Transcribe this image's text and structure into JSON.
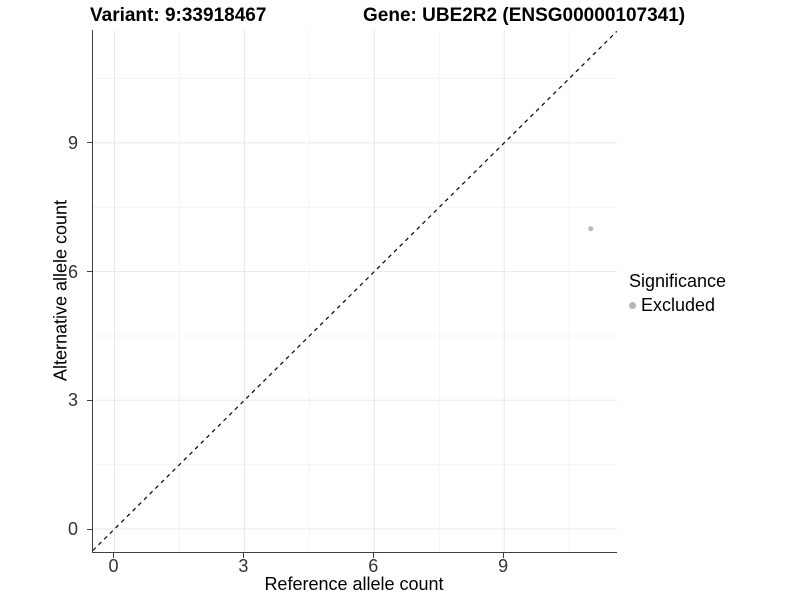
{
  "titles": {
    "variant": "Variant: 9:33918467",
    "gene": "Gene: UBE2R2 (ENSG00000107341)"
  },
  "chart_data": {
    "type": "scatter",
    "title_left": "Variant: 9:33918467",
    "title_right": "Gene: UBE2R2 (ENSG00000107341)",
    "xlabel": "Reference allele count",
    "ylabel": "Alternative allele count",
    "xlim": [
      -0.5,
      11.6
    ],
    "ylim": [
      -0.54,
      11.63
    ],
    "xticks": [
      0,
      3,
      6,
      9
    ],
    "yticks": [
      0,
      3,
      6,
      9
    ],
    "minor_ticks_x": [
      1.5,
      4.5,
      7.5,
      10.5
    ],
    "minor_ticks_y": [
      1.5,
      4.5,
      7.5,
      10.5
    ],
    "grid": "major and minor gridlines, white background",
    "series": [
      {
        "name": "Excluded",
        "color": "#bdbdbd",
        "points": [
          {
            "x": 11,
            "y": 7
          }
        ]
      }
    ],
    "reference_line": {
      "equation": "y = x",
      "style": "dashed",
      "color": "#000000"
    },
    "legend": {
      "title": "Significance",
      "position": "right",
      "items": [
        {
          "label": "Excluded",
          "color": "#b5b5b5"
        }
      ]
    }
  },
  "colors": {
    "major_grid": "#e8e8e8",
    "minor_grid": "#f4f4f4",
    "axis_line": "#404040",
    "tick_text": "#333333",
    "point": "#bdbdbd"
  }
}
